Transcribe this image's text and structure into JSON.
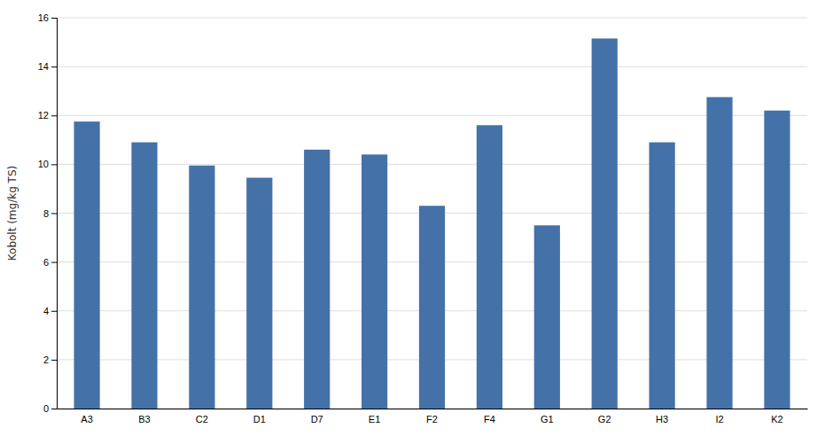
{
  "chart_data": {
    "type": "bar",
    "categories": [
      "A3",
      "B3",
      "C2",
      "D1",
      "D7",
      "E1",
      "F2",
      "F4",
      "G1",
      "G2",
      "H3",
      "I2",
      "K2"
    ],
    "values": [
      11.75,
      10.9,
      9.95,
      9.45,
      10.6,
      10.4,
      8.3,
      11.6,
      7.5,
      15.15,
      10.9,
      12.75,
      12.2
    ],
    "color": "#4472a8",
    "ylabel": "Kobolt (mg/kg TS)",
    "ylim": [
      0,
      16
    ],
    "yticks": [
      0,
      2,
      4,
      6,
      8,
      10,
      12,
      14,
      16
    ],
    "grid": true
  }
}
